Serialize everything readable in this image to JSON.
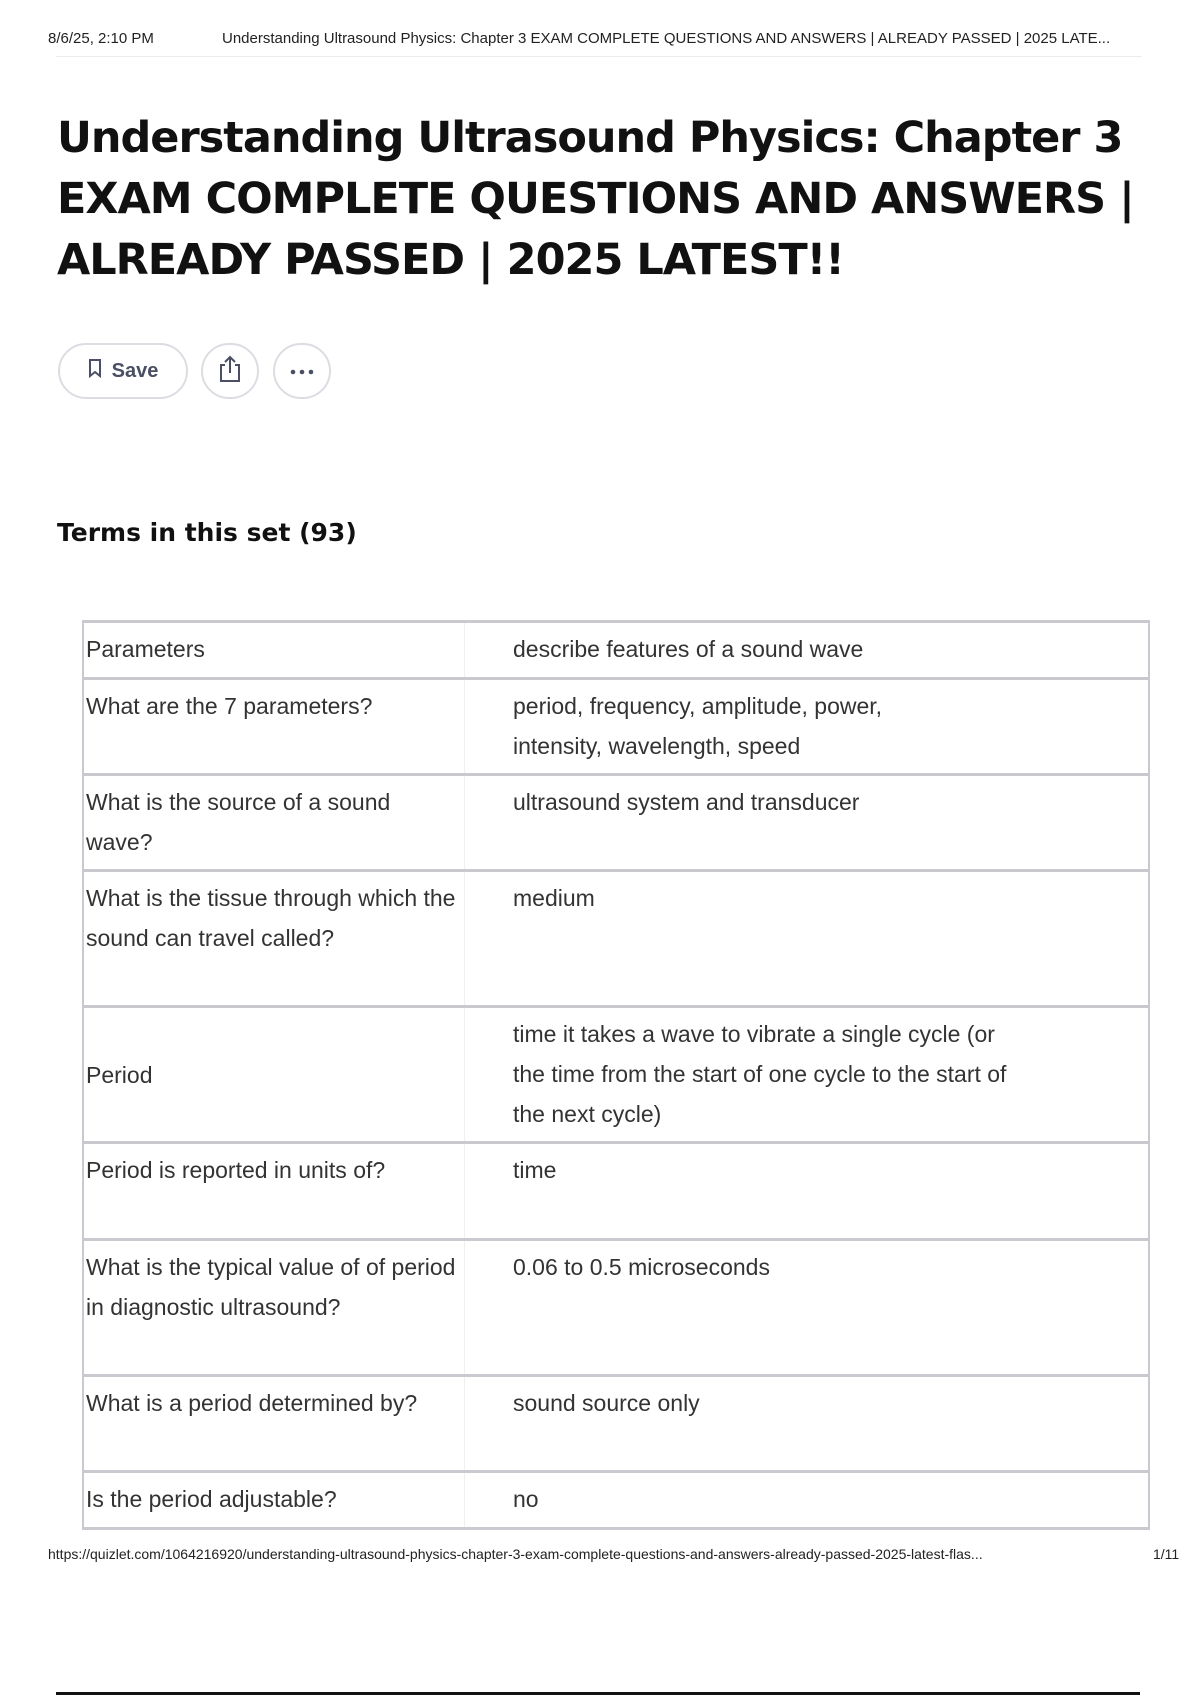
{
  "print_header": {
    "datetime": "8/6/25, 2:10 PM",
    "page_title": "Understanding Ultrasound Physics: Chapter 3 EXAM COMPLETE QUESTIONS AND ANSWERS | ALREADY PASSED | 2025 LATE..."
  },
  "title": "Understanding Ultrasound Physics: Chapter 3 EXAM COMPLETE QUESTIONS AND ANSWERS | ALREADY PASSED | 2025 LATEST!!",
  "actions": {
    "save_label": "Save",
    "save_icon": "bookmark-icon",
    "share_icon": "share-icon",
    "more_icon": "ellipsis-icon"
  },
  "terms_heading": "Terms in this set (93)",
  "terms": [
    {
      "term": "Parameters",
      "definition": "describe features of a sound wave"
    },
    {
      "term": "What are the 7 parameters?",
      "definition": "period, frequency, amplitude, power, intensity, wavelength, speed"
    },
    {
      "term": "What is the source of a sound wave?",
      "definition": "ultrasound system and transducer"
    },
    {
      "term": "What is the tissue through which the sound can travel called?",
      "definition": "medium"
    },
    {
      "term": "Period",
      "definition": "time it takes a wave to vibrate a single cycle (or the time from the start of one cycle to the start of the next cycle)"
    },
    {
      "term": "Period is reported in units of?",
      "definition": "time"
    },
    {
      "term": "What is the typical value of of period in diagnostic ultrasound?",
      "definition": "0.06 to 0.5 microseconds"
    },
    {
      "term": "What is a period determined by?",
      "definition": "sound source only"
    },
    {
      "term": "Is the period adjustable?",
      "definition": "no"
    }
  ],
  "print_footer": {
    "url": "https://quizlet.com/1064216920/understanding-ultrasound-physics-chapter-3-exam-complete-questions-and-answers-already-passed-2025-latest-flas...",
    "page": "1/11"
  }
}
